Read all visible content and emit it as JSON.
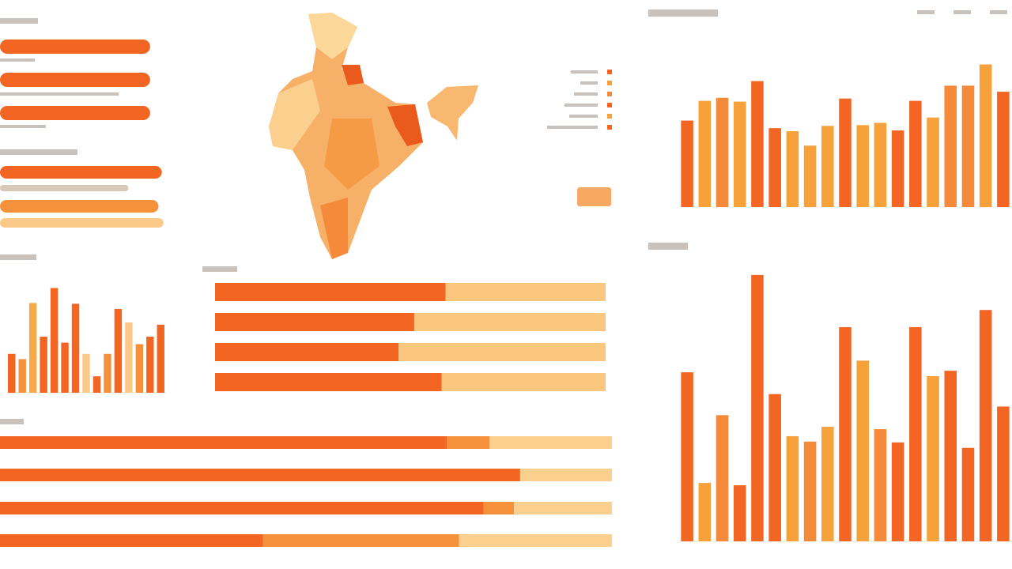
{
  "chart_data": [
    {
      "type": "bar",
      "orientation": "horizontal",
      "xlim": [
        0,
        100
      ],
      "values": [
        90,
        90,
        90,
        97,
        77,
        95,
        98
      ],
      "colors": [
        "#f26522",
        "#f26522",
        "#f26522",
        "#f26522",
        "#d8c8b8",
        "#f5913a",
        "#fbc98a"
      ]
    },
    {
      "type": "bar",
      "orientation": "vertical",
      "ylim": [
        0,
        150
      ],
      "values": [
        52,
        45,
        120,
        75,
        140,
        67,
        119,
        52,
        22,
        52,
        112,
        94,
        65,
        75,
        91
      ],
      "colors": [
        "#f26522",
        "#f5913a",
        "#f7a94a",
        "#f26522",
        "#f26522",
        "#f26522",
        "#f26522",
        "#fbc98a",
        "#f26522",
        "#f5913a",
        "#f26522",
        "#fbc98a",
        "#f5913a",
        "#f26522",
        "#f26522"
      ]
    },
    {
      "type": "bar",
      "orientation": "horizontal",
      "stacked": true,
      "xlim": [
        0,
        100
      ],
      "series": [
        {
          "color": "#f26522",
          "values": [
            59,
            51,
            47,
            58
          ]
        },
        {
          "color": "#fbc77f",
          "values": [
            41,
            49,
            53,
            42
          ]
        }
      ]
    },
    {
      "type": "bar",
      "orientation": "horizontal",
      "stacked": true,
      "xlim": [
        0,
        100
      ],
      "series": [
        {
          "color": "#f26522",
          "values": [
            73,
            85,
            79,
            43
          ]
        },
        {
          "color": "#f5913a",
          "values": [
            7,
            0,
            5,
            32
          ]
        },
        {
          "color": "#fbd08e",
          "values": [
            20,
            15,
            16,
            25
          ]
        }
      ]
    },
    {
      "type": "bar",
      "orientation": "vertical",
      "ylim": [
        0,
        200
      ],
      "values": [
        114,
        140,
        144,
        139,
        166,
        104,
        100,
        81,
        107,
        143,
        108,
        111,
        101,
        140,
        118,
        160,
        160,
        188,
        152
      ],
      "colors": [
        "#f26522",
        "#f7a13a",
        "#f58a3a",
        "#f7a13a",
        "#f26522",
        "#f26522",
        "#f7a13a",
        "#f7a13a",
        "#f7a13a",
        "#f26522",
        "#f7a13a",
        "#f7a13a",
        "#f26522",
        "#f26522",
        "#f7a13a",
        "#f58a3a",
        "#f58a3a",
        "#f7a13a",
        "#f26522"
      ]
    },
    {
      "type": "bar",
      "orientation": "vertical",
      "ylim": [
        0,
        350
      ],
      "values": [
        217,
        75,
        162,
        72,
        342,
        189,
        135,
        128,
        147,
        275,
        232,
        144,
        127,
        275,
        212,
        219,
        120,
        297,
        173
      ],
      "colors": [
        "#f26522",
        "#f7a13a",
        "#f58a3a",
        "#f26522",
        "#f26522",
        "#f26522",
        "#f7a13a",
        "#f58a3a",
        "#f7a13a",
        "#f26522",
        "#f7a13a",
        "#f58a3a",
        "#f26522",
        "#f26522",
        "#f7a13a",
        "#f26522",
        "#f26522",
        "#f26522",
        "#f26522"
      ]
    }
  ]
}
